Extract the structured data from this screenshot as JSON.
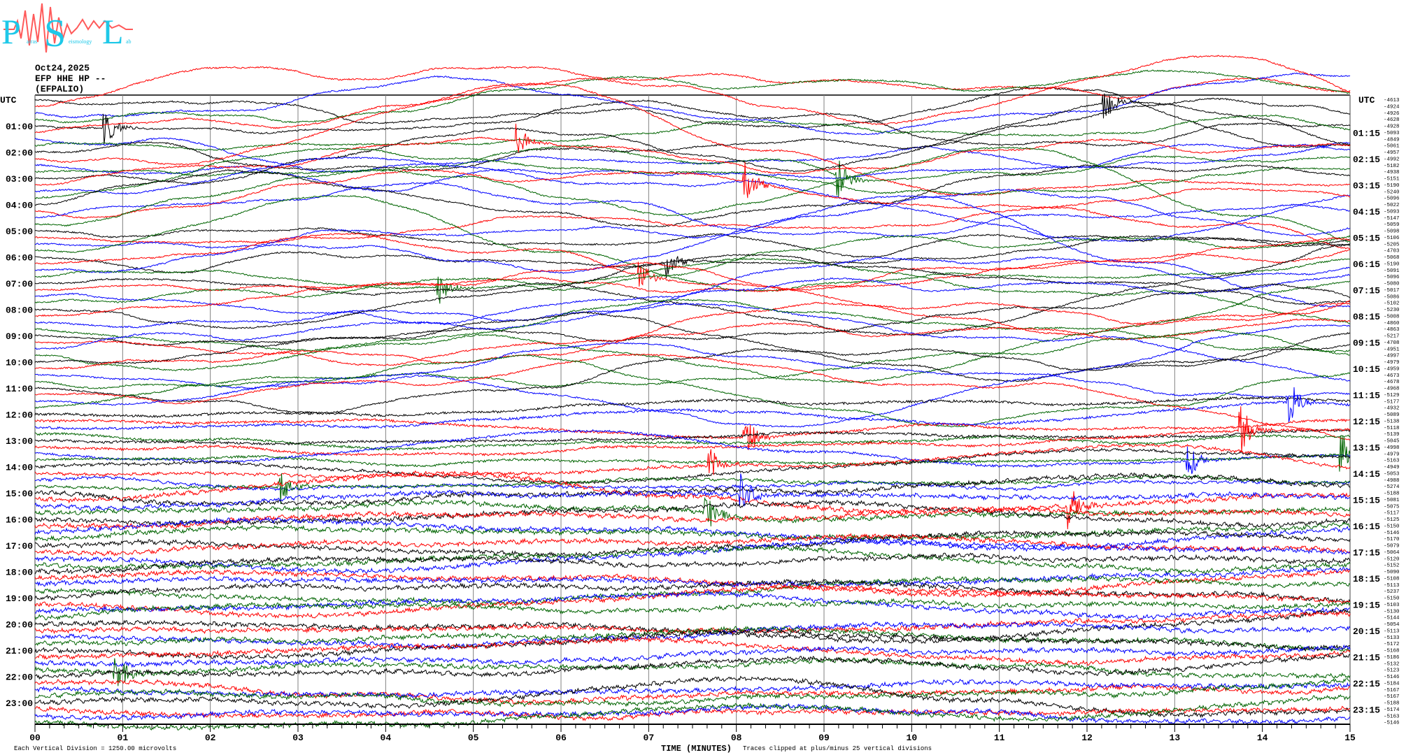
{
  "logo": {
    "text": "Patras Seismology Lab",
    "letters": [
      "P",
      "S",
      "L"
    ],
    "subtext": [
      "atras",
      "eismology",
      "ab"
    ]
  },
  "header": {
    "date": "Oct24,2025",
    "station": "EFP HHE HP --",
    "name": "(EFPALIO)"
  },
  "footer": {
    "scale": "Each Vertical Division = 1250.00 microvolts",
    "xlabel": "TIME (MINUTES)",
    "clip_note": "Traces clipped at plus/minus 25 vertical divisions"
  },
  "colors": {
    "trace_cycle": [
      "#000000",
      "#ff0000",
      "#0000ff",
      "#006400"
    ],
    "grid": "#808080"
  },
  "chart_data": {
    "type": "line",
    "subtype": "helicorder",
    "xlabel": "TIME (MINUTES)",
    "xlim": [
      0,
      15
    ],
    "x_ticks": [
      "00",
      "01",
      "02",
      "03",
      "04",
      "05",
      "06",
      "07",
      "08",
      "09",
      "10",
      "11",
      "12",
      "13",
      "14",
      "15"
    ],
    "left_labels": [
      "UTC",
      "01:00",
      "02:00",
      "03:00",
      "04:00",
      "05:00",
      "06:00",
      "07:00",
      "08:00",
      "09:00",
      "10:00",
      "11:00",
      "12:00",
      "13:00",
      "14:00",
      "15:00",
      "16:00",
      "17:00",
      "18:00",
      "19:00",
      "20:00",
      "21:00",
      "22:00",
      "23:00"
    ],
    "right_labels": [
      "UTC",
      "01:15",
      "02:15",
      "03:15",
      "04:15",
      "05:15",
      "06:15",
      "07:15",
      "08:15",
      "09:15",
      "10:15",
      "11:15",
      "12:15",
      "13:15",
      "14:15",
      "15:15",
      "16:15",
      "17:15",
      "18:15",
      "19:15",
      "20:15",
      "21:15",
      "22:15",
      "23:15"
    ],
    "rows_per_hour": 4,
    "grid": true,
    "trace_offsets": [
      -4613,
      -4924,
      -4926,
      -4628,
      -4928,
      -5093,
      -4849,
      -5061,
      -4957,
      -4992,
      -5182,
      -4938,
      -5151,
      -5190,
      -5240,
      -5096,
      -5022,
      -5093,
      -5147,
      -5059,
      -5098,
      -5106,
      -5205,
      -4703,
      -5068,
      -5190,
      -5091,
      -5096,
      -5080,
      -5017,
      -5086,
      -5102,
      -5230,
      -5008,
      -4860,
      -4863,
      -5217,
      -4708,
      -4951,
      -4997,
      -4979,
      -4959,
      -4673,
      -4678,
      -4968,
      -5129,
      -5177,
      -4932,
      -5089,
      -5138,
      -5118,
      -5139,
      -5045,
      -4998,
      -4979,
      -5163,
      -4949,
      -5053,
      -4988,
      -5274,
      -5188,
      -5081,
      -5075,
      -5117,
      -5125,
      -5150,
      -5146,
      -5170,
      -5079,
      -5064,
      -5120,
      -5152,
      -5090,
      -5108,
      -5113,
      -5237,
      -5150,
      -5103,
      -5130,
      -5144,
      -5054,
      -5113,
      -5133,
      -5172,
      -5168,
      -5186,
      -5132,
      -5123,
      -5146,
      -5184,
      -5167,
      -5167,
      -5188,
      -5174,
      -5163,
      -5146
    ],
    "events": [
      {
        "row": 4,
        "minute": 0.8,
        "amp": 3
      },
      {
        "row": 13,
        "minute": 5.5,
        "amp": 3
      },
      {
        "row": 17,
        "minute": 8.1,
        "amp": 4
      },
      {
        "row": 11,
        "minute": 9.15,
        "amp": 4
      },
      {
        "row": 12,
        "minute": 12.2,
        "amp": 3
      },
      {
        "row": 24,
        "minute": 7.2,
        "amp": 3
      },
      {
        "row": 25,
        "minute": 6.9,
        "amp": 2.5
      },
      {
        "row": 27,
        "minute": 4.6,
        "amp": 3
      },
      {
        "row": 49,
        "minute": 8.1,
        "amp": 4
      },
      {
        "row": 50,
        "minute": 14.3,
        "amp": 4
      },
      {
        "row": 53,
        "minute": 13.75,
        "amp": 4
      },
      {
        "row": 54,
        "minute": 13.15,
        "amp": 3
      },
      {
        "row": 55,
        "minute": 14.9,
        "amp": 3.5
      },
      {
        "row": 57,
        "minute": 7.7,
        "amp": 3
      },
      {
        "row": 59,
        "minute": 2.8,
        "amp": 3
      },
      {
        "row": 61,
        "minute": 11.8,
        "amp": 3.5
      },
      {
        "row": 62,
        "minute": 8.05,
        "amp": 3.5
      },
      {
        "row": 63,
        "minute": 7.65,
        "amp": 3.5
      },
      {
        "row": 87,
        "minute": 0.92,
        "amp": 3.5
      }
    ]
  }
}
